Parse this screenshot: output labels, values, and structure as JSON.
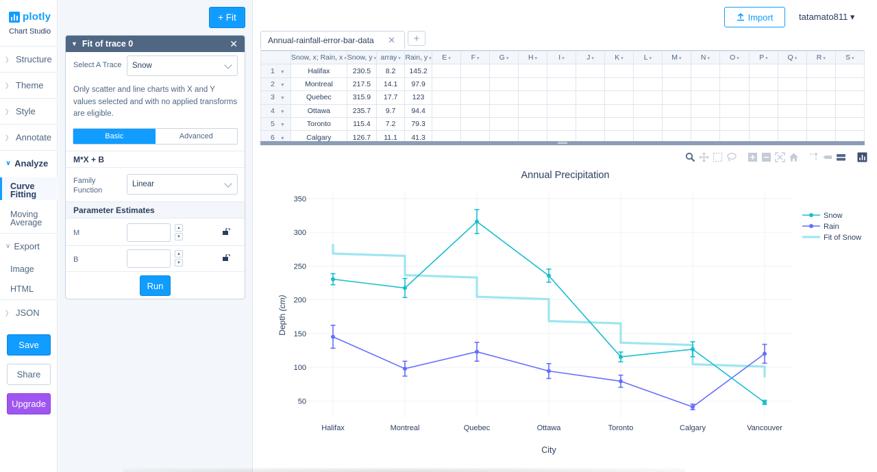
{
  "app": {
    "logo_text": "plotly",
    "subtitle": "Chart Studio"
  },
  "nav": {
    "items": [
      {
        "label": "Structure"
      },
      {
        "label": "Theme"
      },
      {
        "label": "Style"
      },
      {
        "label": "Annotate"
      },
      {
        "label": "Analyze"
      },
      {
        "label": "Export"
      },
      {
        "label": "JSON"
      }
    ],
    "analyze_sub": [
      "Curve Fitting",
      "Moving Average"
    ],
    "export_sub": [
      "Image",
      "HTML"
    ],
    "save_label": "Save",
    "share_label": "Share",
    "upgrade_label": "Upgrade"
  },
  "panel": {
    "fit_button": "+ Fit",
    "card_title": "Fit of trace 0",
    "select_trace_label": "Select A Trace",
    "select_trace_value": "Snow",
    "info_text": "Only scatter and line charts with X and Y values selected and with no applied transforms are eligible.",
    "tab_basic": "Basic",
    "tab_advanced": "Advanced",
    "formula": "M*X + B",
    "family_label": "Family Function",
    "family_value": "Linear",
    "param_header": "Parameter Estimates",
    "param_m": "M",
    "param_b": "B",
    "run_label": "Run"
  },
  "main": {
    "import_label": "Import",
    "user": "tatamato811 ▾",
    "tab_name": "Annual-rainfall-error-bar-data",
    "grid": {
      "headers": [
        "Snow, x; Rain, x",
        "Snow, y",
        "array",
        "Rain, y",
        "E",
        "F",
        "G",
        "H",
        "I",
        "J",
        "K",
        "L",
        "M",
        "N",
        "O",
        "P",
        "Q",
        "R",
        "S"
      ],
      "rows": [
        [
          "1",
          "Halifax",
          "230.5",
          "8.2",
          "145.2"
        ],
        [
          "2",
          "Montreal",
          "217.5",
          "14.1",
          "97.9"
        ],
        [
          "3",
          "Quebec",
          "315.9",
          "17.7",
          "123"
        ],
        [
          "4",
          "Ottawa",
          "235.7",
          "9.7",
          "94.4"
        ],
        [
          "5",
          "Toronto",
          "115.4",
          "7.2",
          "79.3"
        ],
        [
          "6",
          "Calgary",
          "126.7",
          "11.1",
          "41.3"
        ]
      ]
    }
  },
  "chart_data": {
    "type": "line",
    "title": "Annual Precipitation",
    "xlabel": "City",
    "ylabel_main": "Depth",
    "ylabel_unit": "(cm)",
    "categories": [
      "Halifax",
      "Montreal",
      "Quebec",
      "Ottawa",
      "Toronto",
      "Calgary",
      "Vancouver"
    ],
    "ylim": [
      25,
      360
    ],
    "yticks": [
      50,
      100,
      150,
      200,
      250,
      300,
      350
    ],
    "grid": true,
    "legend_position": "top-right",
    "series": [
      {
        "name": "Snow",
        "color": "#17becf",
        "values": [
          230.5,
          217.5,
          315.9,
          235.7,
          115.4,
          126.7,
          48
        ],
        "errors": [
          8.2,
          14.1,
          17.7,
          9.7,
          7.2,
          11.1,
          3
        ]
      },
      {
        "name": "Rain",
        "color": "#636efa",
        "values": [
          145.2,
          97.9,
          123,
          94.4,
          79.3,
          41.3,
          120
        ],
        "errors": [
          17,
          11,
          14,
          11,
          9,
          4,
          14
        ]
      },
      {
        "name": "Fit of Snow",
        "color": "#9ee6f0",
        "step_levels": [
          268.5,
          236.5,
          204.5,
          168.5,
          136.5,
          104.5
        ],
        "start": 283,
        "end": 85
      }
    ]
  }
}
